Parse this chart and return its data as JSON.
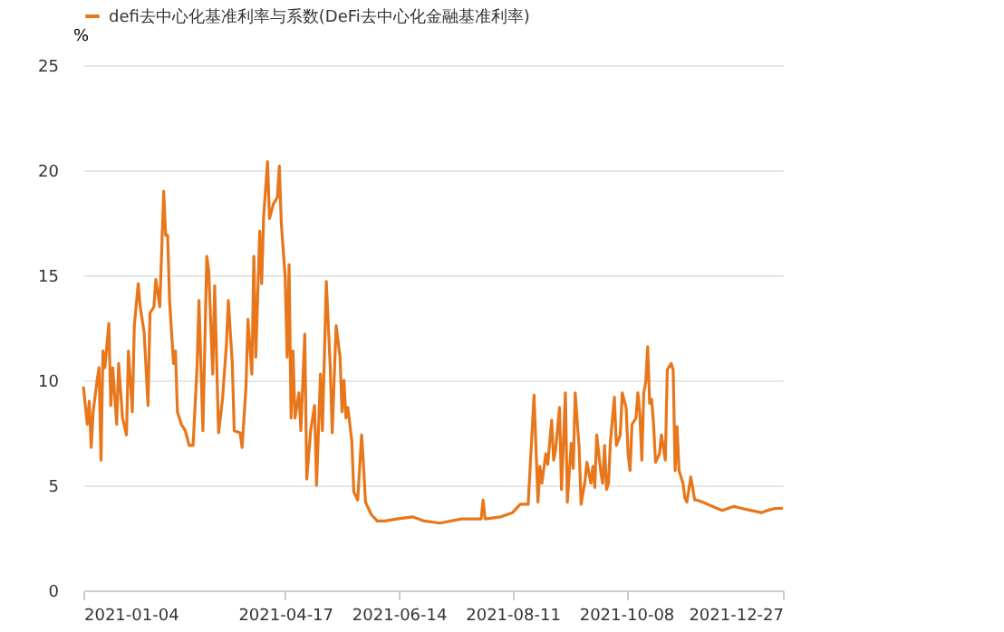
{
  "chart_data": {
    "type": "line",
    "ylabel": "%",
    "legend": "top left",
    "grid": "y",
    "marker": "none",
    "line_style": "solid",
    "ylim": [
      0,
      25
    ],
    "yticks": [
      0,
      5,
      10,
      15,
      20,
      25
    ],
    "xlim": [
      "2021-01-04",
      "2021-12-27"
    ],
    "xticks": [
      "2021-01-04",
      "2021-04-17",
      "2021-06-14",
      "2021-08-11",
      "2021-10-08",
      "2021-12-27"
    ],
    "x": [
      "2021-01-04",
      "2021-01-05",
      "2021-01-06",
      "2021-01-07",
      "2021-01-08",
      "2021-01-09",
      "2021-01-11",
      "2021-01-12",
      "2021-01-13",
      "2021-01-14",
      "2021-01-15",
      "2021-01-17",
      "2021-01-18",
      "2021-01-19",
      "2021-01-21",
      "2021-01-22",
      "2021-01-24",
      "2021-01-26",
      "2021-01-27",
      "2021-01-29",
      "2021-01-30",
      "2021-02-01",
      "2021-02-02",
      "2021-02-04",
      "2021-02-06",
      "2021-02-07",
      "2021-02-09",
      "2021-02-10",
      "2021-02-12",
      "2021-02-14",
      "2021-02-15",
      "2021-02-16",
      "2021-02-17",
      "2021-02-19",
      "2021-02-20",
      "2021-02-21",
      "2021-02-23",
      "2021-02-25",
      "2021-02-27",
      "2021-03-01",
      "2021-03-03",
      "2021-03-04",
      "2021-03-06",
      "2021-03-08",
      "2021-03-09",
      "2021-03-11",
      "2021-03-12",
      "2021-03-14",
      "2021-03-16",
      "2021-03-18",
      "2021-03-19",
      "2021-03-21",
      "2021-03-22",
      "2021-03-25",
      "2021-03-26",
      "2021-03-28",
      "2021-03-29",
      "2021-03-31",
      "2021-04-01",
      "2021-04-02",
      "2021-04-04",
      "2021-04-05",
      "2021-04-06",
      "2021-04-08",
      "2021-04-09",
      "2021-04-11",
      "2021-04-13",
      "2021-04-14",
      "2021-04-15",
      "2021-04-17",
      "2021-04-18",
      "2021-04-19",
      "2021-04-20",
      "2021-04-21",
      "2021-04-22",
      "2021-04-24",
      "2021-04-25",
      "2021-04-27",
      "2021-04-28",
      "2021-04-30",
      "2021-05-02",
      "2021-05-03",
      "2021-05-05",
      "2021-05-06",
      "2021-05-08",
      "2021-05-10",
      "2021-05-11",
      "2021-05-13",
      "2021-05-15",
      "2021-05-16",
      "2021-05-17",
      "2021-05-18",
      "2021-05-19",
      "2021-05-21",
      "2021-05-22",
      "2021-05-24",
      "2021-05-26",
      "2021-05-27",
      "2021-05-28",
      "2021-05-31",
      "2021-06-03",
      "2021-06-07",
      "2021-06-13",
      "2021-06-21",
      "2021-06-27",
      "2021-07-05",
      "2021-07-16",
      "2021-07-26",
      "2021-07-27",
      "2021-07-28",
      "2021-08-05",
      "2021-08-11",
      "2021-08-15",
      "2021-08-19",
      "2021-08-22",
      "2021-08-24",
      "2021-08-25",
      "2021-08-26",
      "2021-08-28",
      "2021-08-29",
      "2021-08-31",
      "2021-09-01",
      "2021-09-02",
      "2021-09-04",
      "2021-09-05",
      "2021-09-07",
      "2021-09-08",
      "2021-09-10",
      "2021-09-11",
      "2021-09-12",
      "2021-09-14",
      "2021-09-15",
      "2021-09-17",
      "2021-09-18",
      "2021-09-20",
      "2021-09-21",
      "2021-09-22",
      "2021-09-23",
      "2021-09-25",
      "2021-09-26",
      "2021-09-27",
      "2021-09-28",
      "2021-09-29",
      "2021-09-30",
      "2021-10-02",
      "2021-10-03",
      "2021-10-05",
      "2021-10-06",
      "2021-10-08",
      "2021-10-09",
      "2021-10-10",
      "2021-10-11",
      "2021-10-13",
      "2021-10-14",
      "2021-10-15",
      "2021-10-16",
      "2021-10-17",
      "2021-10-18",
      "2021-10-19",
      "2021-10-20",
      "2021-10-21",
      "2021-10-22",
      "2021-10-23",
      "2021-10-25",
      "2021-10-26",
      "2021-10-28",
      "2021-10-29",
      "2021-10-31",
      "2021-11-01",
      "2021-11-02",
      "2021-11-03",
      "2021-11-04",
      "2021-11-06",
      "2021-11-07",
      "2021-11-08",
      "2021-11-09",
      "2021-11-10",
      "2021-11-12",
      "2021-11-13",
      "2021-11-16",
      "2021-11-21",
      "2021-11-26",
      "2021-11-29",
      "2021-12-02",
      "2021-12-06",
      "2021-12-11",
      "2021-12-16",
      "2021-12-19",
      "2021-12-23",
      "2021-12-27"
    ],
    "series": [
      {
        "name": "defi去中心化基准利率与系数(DeFi去中心化金融基准利率)",
        "color": "#e8761a",
        "values": [
          9.7,
          8.8,
          7.9,
          9.0,
          6.8,
          8.5,
          10.0,
          10.6,
          6.2,
          11.4,
          10.6,
          12.7,
          8.8,
          10.6,
          7.9,
          10.8,
          8.2,
          7.4,
          11.4,
          8.5,
          12.6,
          14.6,
          13.5,
          12.3,
          8.8,
          13.2,
          13.5,
          14.8,
          13.5,
          19.0,
          16.9,
          16.9,
          13.8,
          10.8,
          11.4,
          8.5,
          7.9,
          7.6,
          6.9,
          6.9,
          10.6,
          13.8,
          7.6,
          15.9,
          15.2,
          10.3,
          14.5,
          7.5,
          9.1,
          11.7,
          13.8,
          10.8,
          7.6,
          7.5,
          6.8,
          9.7,
          12.9,
          10.3,
          15.9,
          11.1,
          17.1,
          14.6,
          17.8,
          20.4,
          17.7,
          18.4,
          18.7,
          20.2,
          17.5,
          14.9,
          11.1,
          15.5,
          8.2,
          11.4,
          8.2,
          9.4,
          7.6,
          12.2,
          5.3,
          7.6,
          8.8,
          5.0,
          10.3,
          7.6,
          14.7,
          10.6,
          7.5,
          12.6,
          11.1,
          8.5,
          10.0,
          8.2,
          8.7,
          7.1,
          4.7,
          4.3,
          7.4,
          5.9,
          4.2,
          3.6,
          3.3,
          3.3,
          3.4,
          3.5,
          3.3,
          3.2,
          3.4,
          3.4,
          4.3,
          3.4,
          3.5,
          3.7,
          4.1,
          4.1,
          9.3,
          4.2,
          5.9,
          5.1,
          6.5,
          6.0,
          8.1,
          6.2,
          6.7,
          8.7,
          4.8,
          9.4,
          4.2,
          7.0,
          5.8,
          9.4,
          6.8,
          4.1,
          5.2,
          6.1,
          5.1,
          5.9,
          4.9,
          7.4,
          5.7,
          5.1,
          6.9,
          4.8,
          5.1,
          7.1,
          9.2,
          6.9,
          7.4,
          9.4,
          8.7,
          6.5,
          5.7,
          7.9,
          8.2,
          9.4,
          8.4,
          6.2,
          9.4,
          9.9,
          11.6,
          8.9,
          9.1,
          7.9,
          6.1,
          6.5,
          7.4,
          6.2,
          10.5,
          10.8,
          10.5,
          5.7,
          7.8,
          5.7,
          5.1,
          4.4,
          4.2,
          4.8,
          5.4,
          4.3,
          4.3,
          4.2,
          4.0,
          3.8,
          3.9,
          4.0,
          3.9,
          3.8,
          3.7,
          3.8,
          3.9,
          3.9
        ]
      }
    ]
  }
}
